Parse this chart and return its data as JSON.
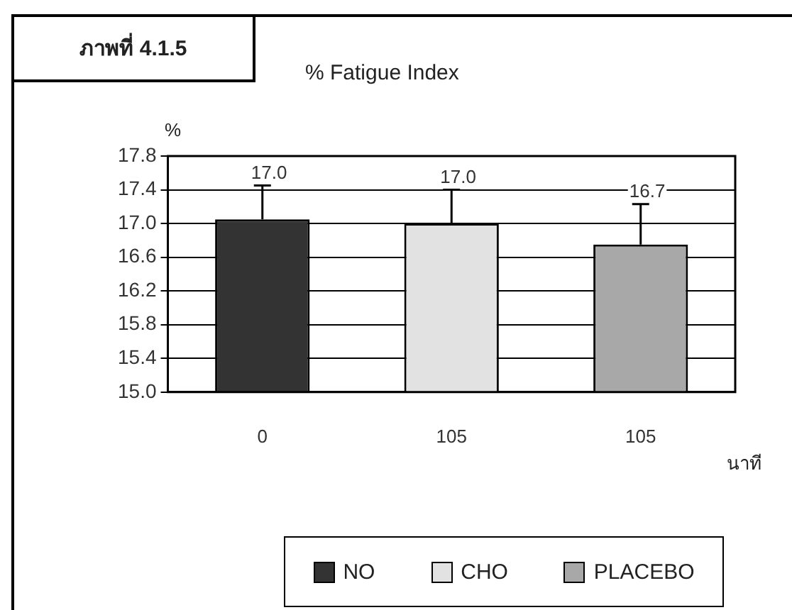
{
  "chart_data": {
    "type": "bar",
    "title": "% Fatigue Index",
    "ylabel": "%",
    "xlabel": "นาที",
    "annotations": [
      "ภาพที่ 4.1.5"
    ],
    "categories": [
      "0",
      "105",
      "105"
    ],
    "series": [
      {
        "name": "NO",
        "color": "#333333",
        "values": [
          17.05,
          null,
          null
        ],
        "errors": [
          0.4,
          null,
          null
        ],
        "value_labels": [
          "17.0",
          null,
          null
        ]
      },
      {
        "name": "CHO",
        "color": "#e2e2e2",
        "values": [
          null,
          17.0,
          null
        ],
        "errors": [
          null,
          0.4,
          null
        ],
        "value_labels": [
          null,
          "17.0",
          null
        ]
      },
      {
        "name": "PLACEBO",
        "color": "#a8a8a8",
        "values": [
          null,
          null,
          16.75
        ],
        "errors": [
          null,
          null,
          0.48
        ],
        "value_labels": [
          null,
          null,
          "16.7"
        ]
      }
    ],
    "ylim": [
      15.0,
      17.8
    ],
    "yticks": [
      {
        "value": 15.0,
        "label": "15.0"
      },
      {
        "value": 15.4,
        "label": "15.4"
      },
      {
        "value": 15.8,
        "label": "15.8"
      },
      {
        "value": 16.2,
        "label": "16.2"
      },
      {
        "value": 16.6,
        "label": "16.6"
      },
      {
        "value": 17.0,
        "label": "17.0"
      },
      {
        "value": 17.4,
        "label": "17.4"
      },
      {
        "value": 17.8,
        "label": "17.8"
      }
    ],
    "grid": "y",
    "legend": "bottom"
  }
}
